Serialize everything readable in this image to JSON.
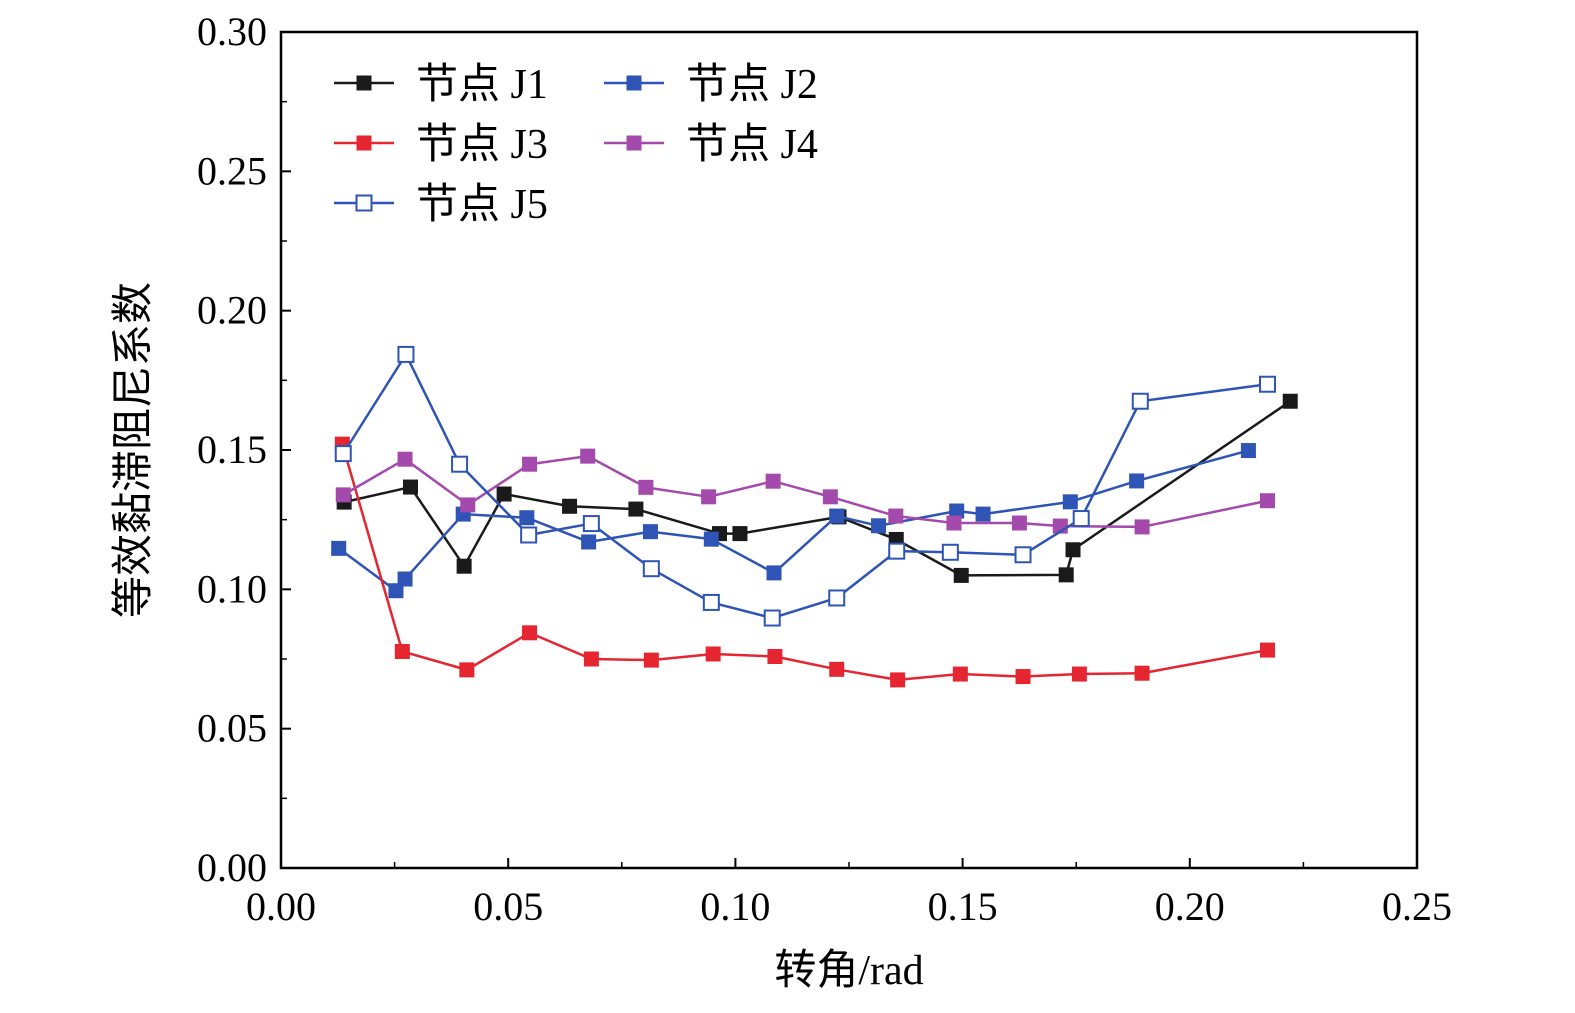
{
  "chart_data": {
    "type": "line",
    "title": "",
    "xlabel": "转角/rad",
    "ylabel": "等效黏滞阻尼系数",
    "xlim": [
      0.0,
      0.25
    ],
    "ylim": [
      0.0,
      0.3
    ],
    "xticks": [
      0.0,
      0.05,
      0.1,
      0.15,
      0.2,
      0.25
    ],
    "yticks": [
      0.0,
      0.05,
      0.1,
      0.15,
      0.2,
      0.25,
      0.3
    ],
    "xtick_labels": [
      "0.00",
      "0.05",
      "0.10",
      "0.15",
      "0.20",
      "0.25"
    ],
    "ytick_labels": [
      "0.00",
      "0.05",
      "0.10",
      "0.15",
      "0.20",
      "0.25",
      "0.30"
    ],
    "grid": false,
    "legend_position": "top-left",
    "series": [
      {
        "name": "节点 J1",
        "color": "#1a1a1a",
        "marker": "filled-square",
        "x": [
          0.0139,
          0.0285,
          0.0403,
          0.0491,
          0.0635,
          0.0781,
          0.0965,
          0.101,
          0.1228,
          0.1354,
          0.1497,
          0.1728,
          0.1743,
          0.2221
        ],
        "y": [
          0.1313,
          0.1367,
          0.1083,
          0.1342,
          0.1298,
          0.1288,
          0.12,
          0.12,
          0.126,
          0.1179,
          0.105,
          0.1052,
          0.1142,
          0.1675
        ]
      },
      {
        "name": "节点 J2",
        "color": "#2e54b5",
        "marker": "filled-square",
        "x": [
          0.0127,
          0.0253,
          0.0273,
          0.0401,
          0.0541,
          0.0677,
          0.0813,
          0.0947,
          0.1085,
          0.1223,
          0.1315,
          0.1487,
          0.1545,
          0.1737,
          0.1883,
          0.2129
        ],
        "y": [
          0.1147,
          0.0995,
          0.1037,
          0.127,
          0.1257,
          0.117,
          0.1207,
          0.118,
          0.1059,
          0.1263,
          0.1228,
          0.1281,
          0.127,
          0.1314,
          0.1389,
          0.1498
        ]
      },
      {
        "name": "节点 J3",
        "color": "#e52530",
        "marker": "filled-square",
        "x": [
          0.0135,
          0.0267,
          0.0409,
          0.0547,
          0.0683,
          0.0815,
          0.0951,
          0.1087,
          0.1223,
          0.1357,
          0.1495,
          0.1633,
          0.1757,
          0.1895,
          0.2171
        ],
        "y": [
          0.1521,
          0.0777,
          0.0711,
          0.0844,
          0.075,
          0.0746,
          0.0768,
          0.0759,
          0.0713,
          0.0675,
          0.0696,
          0.0687,
          0.0696,
          0.0699,
          0.0782
        ]
      },
      {
        "name": "节点 J4",
        "color": "#a44aad",
        "marker": "filled-square",
        "x": [
          0.0137,
          0.0273,
          0.0411,
          0.0547,
          0.0675,
          0.0803,
          0.0941,
          0.1083,
          0.1209,
          0.1353,
          0.1481,
          0.1625,
          0.1715,
          0.1895,
          0.2171
        ],
        "y": [
          0.1339,
          0.1467,
          0.1303,
          0.1449,
          0.1478,
          0.1366,
          0.1332,
          0.1388,
          0.1332,
          0.1263,
          0.1238,
          0.1238,
          0.1227,
          0.1224,
          0.1318
        ]
      },
      {
        "name": "节点 J5",
        "color": "#2e54b5",
        "marker": "open-square",
        "x": [
          0.0137,
          0.0275,
          0.0393,
          0.0545,
          0.0683,
          0.0815,
          0.0947,
          0.1081,
          0.1223,
          0.1355,
          0.1473,
          0.1633,
          0.1761,
          0.1891,
          0.2171
        ],
        "y": [
          0.1487,
          0.1843,
          0.1449,
          0.1195,
          0.1236,
          0.1074,
          0.0953,
          0.0897,
          0.0969,
          0.1137,
          0.1133,
          0.1124,
          0.1254,
          0.1675,
          0.1736
        ]
      }
    ]
  }
}
